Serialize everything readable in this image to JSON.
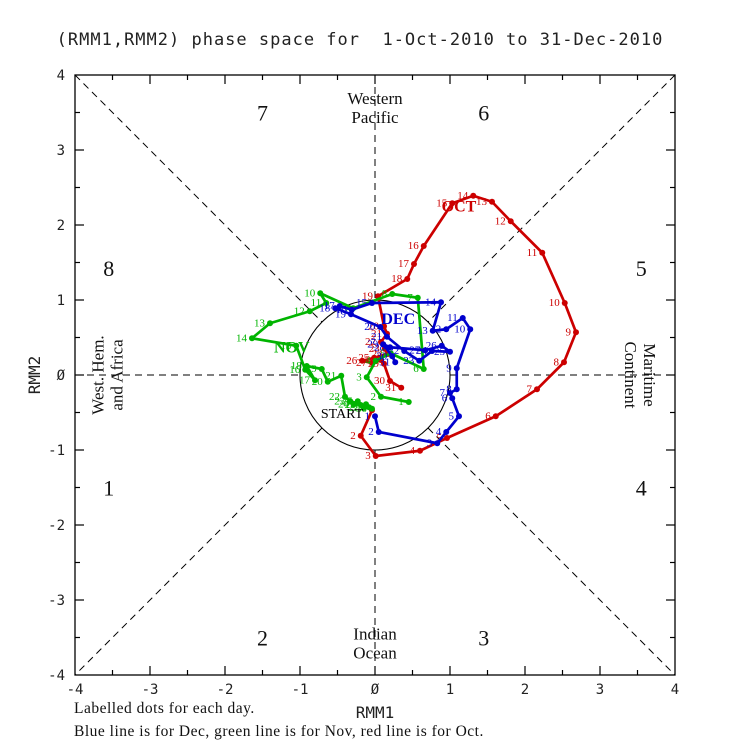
{
  "chart_data": {
    "type": "line",
    "title": "(RMM1,RMM2) phase space for  1-Oct-2010 to 31-Dec-2010",
    "xlabel": "RMM1",
    "ylabel": "RMM2",
    "xlim": [
      -4,
      4
    ],
    "ylim": [
      -4,
      4
    ],
    "tick_values": [
      -4,
      -3,
      -2,
      -1,
      0,
      1,
      2,
      3,
      4
    ],
    "tick_labels": [
      "-4",
      "-3",
      "-2",
      "-1",
      "Ø",
      "1",
      "2",
      "3",
      "4"
    ],
    "minor_tick_step": 0.5,
    "unit_circle_radius": 1,
    "grid": "dashed-phase-lines",
    "legend_position": "caption-below",
    "colors": {
      "oct": "#cc0000",
      "nov": "#00b400",
      "dec": "#0000cd",
      "axis": "#000000"
    },
    "phase_labels": [
      {
        "text": "7",
        "x": -1.5,
        "y": 3.5
      },
      {
        "text": "6",
        "x": 1.45,
        "y": 3.5
      },
      {
        "text": "8",
        "x": -3.55,
        "y": 1.43
      },
      {
        "text": "5",
        "x": 3.55,
        "y": 1.43
      },
      {
        "text": "1",
        "x": -3.55,
        "y": -1.5
      },
      {
        "text": "4",
        "x": 3.55,
        "y": -1.5
      },
      {
        "text": "2",
        "x": -1.5,
        "y": -3.5
      },
      {
        "text": "3",
        "x": 1.45,
        "y": -3.5
      }
    ],
    "region_labels": [
      {
        "id": "western-pacific",
        "lines": [
          "Western",
          "Pacific"
        ],
        "x": 0,
        "y": 3.56,
        "rotation": 0
      },
      {
        "id": "indian-ocean",
        "lines": [
          "Indian",
          "Ocean"
        ],
        "x": 0,
        "y": -3.58,
        "rotation": 0
      },
      {
        "id": "maritime-continent",
        "lines": [
          "Maritime",
          "Continent"
        ],
        "x": 3.53,
        "y": 0,
        "rotation": 90
      },
      {
        "id": "west-hem-africa",
        "lines": [
          "West. Hem.",
          "and Africa"
        ],
        "x": -3.57,
        "y": 0,
        "rotation": -90
      }
    ],
    "start_label": {
      "text": "START",
      "x": -0.45,
      "y": -0.52
    },
    "series": [
      {
        "name": "OCT",
        "color": "#cc0000",
        "month_label": {
          "text": "OCT",
          "x": 1.12,
          "y": 2.18
        },
        "days": [
          {
            "day": 1,
            "x": -0.04,
            "y": -0.47
          },
          {
            "day": 2,
            "x": -0.19,
            "y": -0.81
          },
          {
            "day": 3,
            "x": 0.01,
            "y": -1.08
          },
          {
            "day": 4,
            "x": 0.6,
            "y": -1.01
          },
          {
            "day": 5,
            "x": 0.96,
            "y": -0.84
          },
          {
            "day": 6,
            "x": 1.61,
            "y": -0.55
          },
          {
            "day": 7,
            "x": 2.16,
            "y": -0.19
          },
          {
            "day": 8,
            "x": 2.52,
            "y": 0.17
          },
          {
            "day": 9,
            "x": 2.68,
            "y": 0.57
          },
          {
            "day": 10,
            "x": 2.53,
            "y": 0.96
          },
          {
            "day": 11,
            "x": 2.23,
            "y": 1.63
          },
          {
            "day": 12,
            "x": 1.81,
            "y": 2.05
          },
          {
            "day": 13,
            "x": 1.56,
            "y": 2.31
          },
          {
            "day": 14,
            "x": 1.31,
            "y": 2.39
          },
          {
            "day": 15,
            "x": 1.03,
            "y": 2.29
          },
          {
            "day": 16,
            "x": 0.65,
            "y": 1.72
          },
          {
            "day": 17,
            "x": 0.52,
            "y": 1.48
          },
          {
            "day": 18,
            "x": 0.43,
            "y": 1.28
          },
          {
            "day": 19,
            "x": 0.04,
            "y": 1.05
          },
          {
            "day": 20,
            "x": 0.12,
            "y": 0.65
          },
          {
            "day": 21,
            "x": 0.16,
            "y": 0.55
          },
          {
            "day": 22,
            "x": 0.08,
            "y": 0.44
          },
          {
            "day": 23,
            "x": 0.13,
            "y": 0.35
          },
          {
            "day": 24,
            "x": 0.17,
            "y": 0.28
          },
          {
            "day": 25,
            "x": -0.01,
            "y": 0.23
          },
          {
            "day": 26,
            "x": -0.17,
            "y": 0.19
          },
          {
            "day": 27,
            "x": -0.04,
            "y": 0.16
          },
          {
            "day": 28,
            "x": 0.08,
            "y": 0.2
          },
          {
            "day": 29,
            "x": 0.12,
            "y": 0.15
          },
          {
            "day": 30,
            "x": 0.2,
            "y": -0.08
          },
          {
            "day": 31,
            "x": 0.35,
            "y": -0.17
          }
        ]
      },
      {
        "name": "NOV",
        "color": "#00b400",
        "month_label": {
          "text": "NOV",
          "x": -1.11,
          "y": 0.3
        },
        "days": [
          {
            "day": 1,
            "x": 0.45,
            "y": -0.36
          },
          {
            "day": 2,
            "x": 0.08,
            "y": -0.29
          },
          {
            "day": 3,
            "x": -0.11,
            "y": -0.03
          },
          {
            "day": 4,
            "x": 0.01,
            "y": 0.19
          },
          {
            "day": 5,
            "x": 0.21,
            "y": 0.29
          },
          {
            "day": 6,
            "x": 0.65,
            "y": 0.08
          },
          {
            "day": 7,
            "x": 0.57,
            "y": 1.03
          },
          {
            "day": 8,
            "x": 0.23,
            "y": 1.08
          },
          {
            "day": 9,
            "x": -0.29,
            "y": 0.89
          },
          {
            "day": 10,
            "x": -0.73,
            "y": 1.09
          },
          {
            "day": 11,
            "x": -0.65,
            "y": 0.96
          },
          {
            "day": 12,
            "x": -0.87,
            "y": 0.85
          },
          {
            "day": 13,
            "x": -1.4,
            "y": 0.69
          },
          {
            "day": 14,
            "x": -1.64,
            "y": 0.49
          },
          {
            "day": 15,
            "x": -1.05,
            "y": 0.39
          },
          {
            "day": 16,
            "x": -0.93,
            "y": 0.07
          },
          {
            "day": 17,
            "x": -0.8,
            "y": -0.07
          },
          {
            "day": 18,
            "x": -0.91,
            "y": 0.12
          },
          {
            "day": 19,
            "x": -0.71,
            "y": 0.08
          },
          {
            "day": 20,
            "x": -0.63,
            "y": -0.09
          },
          {
            "day": 21,
            "x": -0.45,
            "y": -0.01
          },
          {
            "day": 22,
            "x": -0.4,
            "y": -0.29
          },
          {
            "day": 23,
            "x": -0.33,
            "y": -0.35
          },
          {
            "day": 24,
            "x": -0.28,
            "y": -0.39
          },
          {
            "day": 25,
            "x": -0.23,
            "y": -0.35
          },
          {
            "day": 26,
            "x": -0.19,
            "y": -0.4
          },
          {
            "day": 27,
            "x": -0.15,
            "y": -0.44
          },
          {
            "day": 28,
            "x": -0.12,
            "y": -0.39
          },
          {
            "day": 29,
            "x": -0.08,
            "y": -0.43
          },
          {
            "day": 30,
            "x": -0.04,
            "y": -0.45
          }
        ]
      },
      {
        "name": "DEC",
        "color": "#0000cd",
        "month_label": {
          "text": "DEC",
          "x": 0.31,
          "y": 0.68
        },
        "days": [
          {
            "day": 1,
            "x": 0.0,
            "y": -0.55
          },
          {
            "day": 2,
            "x": 0.05,
            "y": -0.76
          },
          {
            "day": 3,
            "x": 0.83,
            "y": -0.91
          },
          {
            "day": 4,
            "x": 0.95,
            "y": -0.76
          },
          {
            "day": 5,
            "x": 1.12,
            "y": -0.55
          },
          {
            "day": 6,
            "x": 1.03,
            "y": -0.31
          },
          {
            "day": 7,
            "x": 1.0,
            "y": -0.24
          },
          {
            "day": 8,
            "x": 1.09,
            "y": -0.19
          },
          {
            "day": 9,
            "x": 1.09,
            "y": 0.09
          },
          {
            "day": 10,
            "x": 1.27,
            "y": 0.61
          },
          {
            "day": 11,
            "x": 1.17,
            "y": 0.76
          },
          {
            "day": 12,
            "x": 0.95,
            "y": 0.61
          },
          {
            "day": 13,
            "x": 0.77,
            "y": 0.59
          },
          {
            "day": 14,
            "x": 0.88,
            "y": 0.97
          },
          {
            "day": 15,
            "x": -0.04,
            "y": 0.96
          },
          {
            "day": 16,
            "x": -0.31,
            "y": 0.87
          },
          {
            "day": 17,
            "x": -0.47,
            "y": 0.92
          },
          {
            "day": 18,
            "x": -0.53,
            "y": 0.89
          },
          {
            "day": 19,
            "x": -0.32,
            "y": 0.81
          },
          {
            "day": 20,
            "x": 0.07,
            "y": 0.64
          },
          {
            "day": 21,
            "x": 0.16,
            "y": 0.51
          },
          {
            "day": 22,
            "x": 0.39,
            "y": 0.32
          },
          {
            "day": 23,
            "x": 0.59,
            "y": 0.19
          },
          {
            "day": 24,
            "x": 0.76,
            "y": 0.32
          },
          {
            "day": 25,
            "x": 1.0,
            "y": 0.31
          },
          {
            "day": 26,
            "x": 0.89,
            "y": 0.39
          },
          {
            "day": 27,
            "x": 0.67,
            "y": 0.33
          },
          {
            "day": 28,
            "x": 0.2,
            "y": 0.37
          },
          {
            "day": 29,
            "x": 0.11,
            "y": 0.41
          },
          {
            "day": 30,
            "x": 0.23,
            "y": 0.25
          },
          {
            "day": 31,
            "x": 0.27,
            "y": 0.17
          }
        ]
      }
    ],
    "captions": {
      "line1": "Labelled dots for each day.",
      "line2": "Blue line is for Dec, green line is for Nov, red line is for Oct."
    }
  }
}
